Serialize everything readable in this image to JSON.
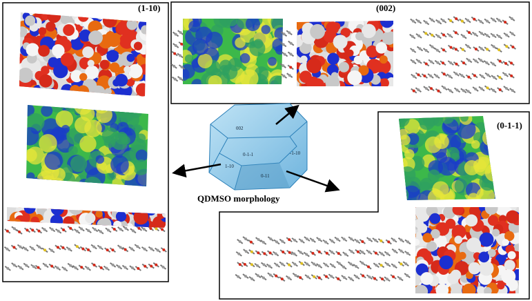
{
  "labels": {
    "left": "(1-10)",
    "top": "(002)",
    "right": "(0-1-1)"
  },
  "morphology": {
    "caption": "QDMSO morphology",
    "faces": [
      "002",
      "0-1-1",
      "-1-10",
      "1-10",
      "0-11"
    ]
  }
}
